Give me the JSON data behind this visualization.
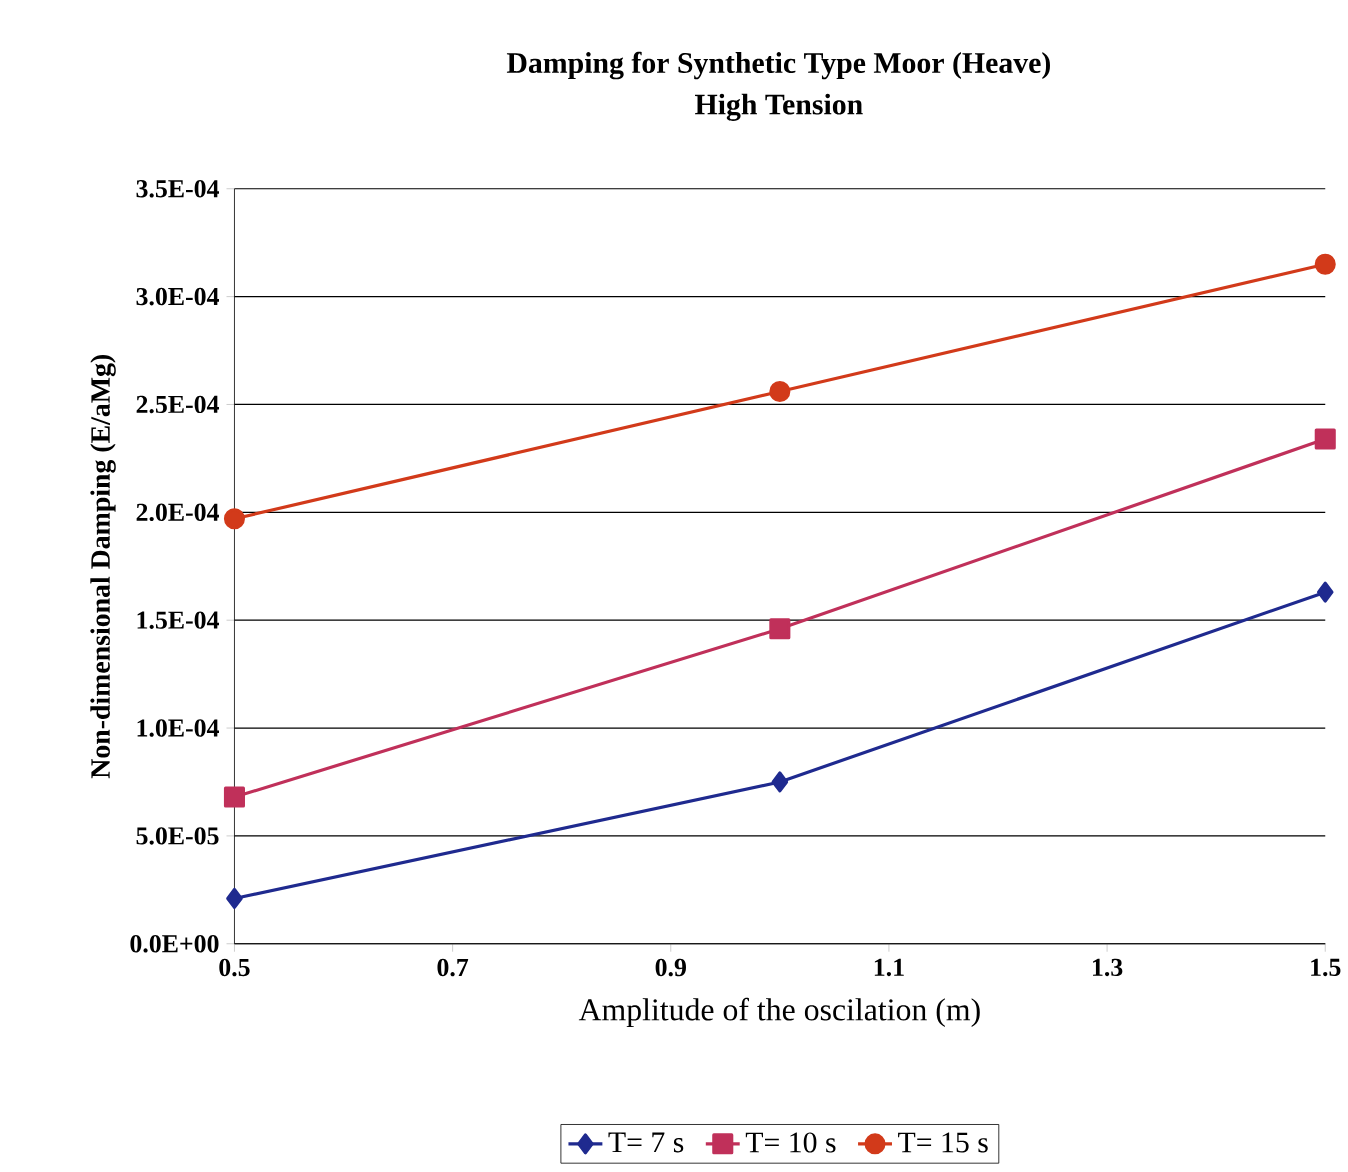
{
  "chart_data": {
    "type": "line",
    "title": "Damping for Synthetic Type Moor (Heave)",
    "subtitle": "High Tension",
    "xlabel": "Amplitude of the oscilation (m)",
    "ylabel": "Non-dimensional Damping (E/aMg)",
    "x": [
      0.5,
      1.0,
      1.5
    ],
    "series": [
      {
        "name": "T= 7 s",
        "color": "#1f2a8f",
        "marker": "diamond",
        "values": [
          2.1e-05,
          7.5e-05,
          0.000163
        ]
      },
      {
        "name": "T= 10 s",
        "color": "#c0305a",
        "marker": "square",
        "values": [
          6.8e-05,
          0.000146,
          0.000234
        ]
      },
      {
        "name": "T= 15 s",
        "color": "#d23a1a",
        "marker": "circle",
        "values": [
          0.000197,
          0.000256,
          0.000315
        ]
      }
    ],
    "xlim": [
      0.5,
      1.5
    ],
    "xticks": [
      0.5,
      0.7,
      0.9,
      1.1,
      1.3,
      1.5
    ],
    "ylim": [
      0,
      0.00035
    ],
    "yticks": [
      {
        "value": 0,
        "label": "0.0E+00"
      },
      {
        "value": 5e-05,
        "label": "5.0E-05"
      },
      {
        "value": 0.0001,
        "label": "1.0E-04"
      },
      {
        "value": 0.00015,
        "label": "1.5E-04"
      },
      {
        "value": 0.0002,
        "label": "2.0E-04"
      },
      {
        "value": 0.00025,
        "label": "2.5E-04"
      },
      {
        "value": 0.0003,
        "label": "3.0E-04"
      },
      {
        "value": 0.00035,
        "label": "3.5E-04"
      }
    ],
    "grid": "y",
    "legend": "bottom",
    "line_style": "solid"
  }
}
